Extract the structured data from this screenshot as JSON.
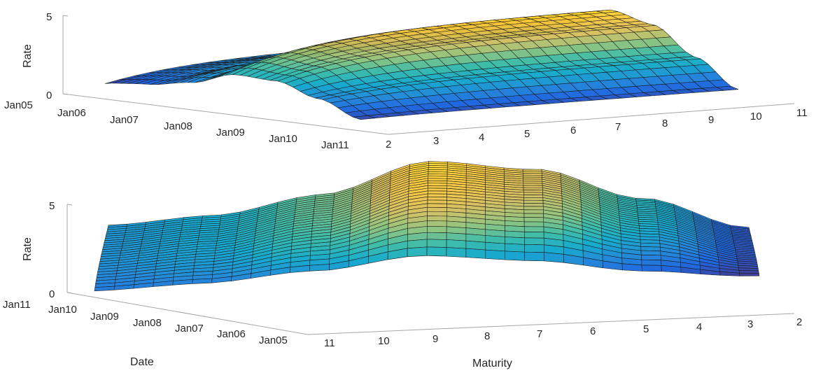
{
  "chart_data": [
    {
      "type": "surface",
      "view": "front",
      "zlabel": "Rate",
      "xlabel": "",
      "ylabel": "",
      "zlim": [
        0,
        5
      ],
      "z_ticks": [
        "0",
        "5"
      ],
      "date_ticks": [
        "Jan05",
        "Jan06",
        "Jan07",
        "Jan08",
        "Jan09",
        "Jan10",
        "Jan11"
      ],
      "maturity_ticks": [
        "2",
        "3",
        "4",
        "5",
        "6",
        "7",
        "8",
        "9",
        "10",
        "11"
      ],
      "grid": false,
      "colormap": "parula",
      "surface": {
        "maturity_range": [
          2,
          10
        ],
        "date_range": [
          "Jan05",
          "Jan11"
        ],
        "rate_by_date_at_long_maturity": [
          {
            "date": "Jan05",
            "rate": 1.5
          },
          {
            "date": "Jan06",
            "rate": 1.9
          },
          {
            "date": "Jan07",
            "rate": 2.9
          },
          {
            "date": "Jan08",
            "rate": 4.6
          },
          {
            "date": "Jan09",
            "rate": 4.0
          },
          {
            "date": "Jan10",
            "rate": 2.2
          },
          {
            "date": "Jan11",
            "rate": 0.4
          }
        ]
      }
    },
    {
      "type": "surface",
      "view": "back",
      "zlabel": "Rate",
      "xlabel": "Maturity",
      "ylabel": "Date",
      "zlim": [
        0,
        5
      ],
      "z_ticks": [
        "0",
        "5"
      ],
      "date_ticks": [
        "Jan11",
        "Jan10",
        "Jan09",
        "Jan08",
        "Jan07",
        "Jan06",
        "Jan05"
      ],
      "maturity_ticks": [
        "11",
        "10",
        "9",
        "8",
        "7",
        "6",
        "5",
        "4",
        "3",
        "2"
      ],
      "grid": false,
      "colormap": "parula",
      "surface": {
        "maturity_range": [
          2,
          10
        ],
        "date_range": [
          "Jan05",
          "Jan11"
        ],
        "rate_by_date_at_long_maturity": [
          {
            "date": "Jan11",
            "rate": 0.4
          },
          {
            "date": "Jan10",
            "rate": 2.2
          },
          {
            "date": "Jan09",
            "rate": 4.0
          },
          {
            "date": "Jan08",
            "rate": 4.6
          },
          {
            "date": "Jan07",
            "rate": 2.9
          },
          {
            "date": "Jan06",
            "rate": 1.9
          },
          {
            "date": "Jan05",
            "rate": 1.5
          }
        ]
      }
    }
  ],
  "colors": {
    "axis": "#a6a6a6",
    "text": "#262626",
    "edge": "#1a1a1a",
    "parula": [
      "#352a87",
      "#0f5cdd",
      "#1481d6",
      "#06a4ca",
      "#2eb7a4",
      "#87bf77",
      "#d1bb59",
      "#fec832",
      "#f9fb0e"
    ]
  }
}
